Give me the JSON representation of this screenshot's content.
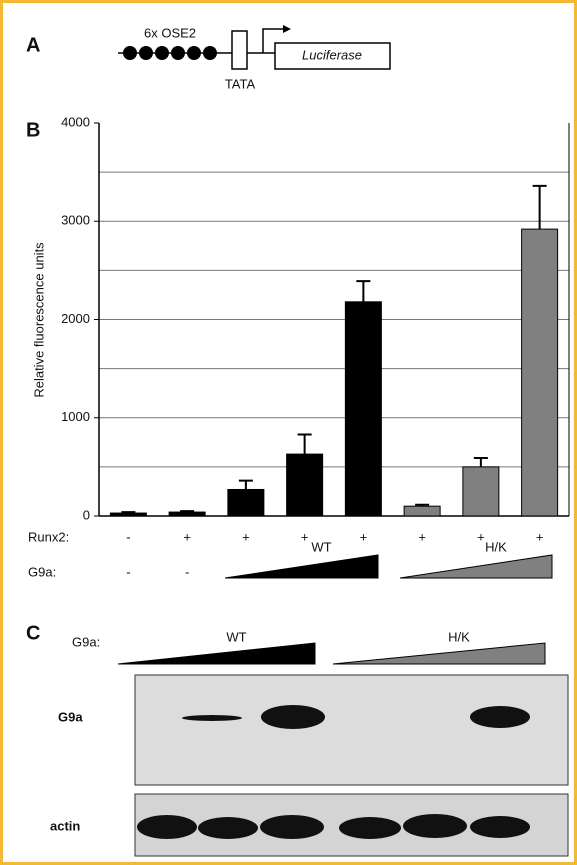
{
  "panel_a": {
    "label": "A",
    "element_label": "6x OSE2",
    "tata_label": "TATA",
    "reporter_label": "Luciferase"
  },
  "chart_data": {
    "type": "bar",
    "panel_label": "B",
    "y_label": "Relative fluorescence units",
    "categories": [
      null,
      null,
      null,
      null,
      null,
      null,
      null,
      null
    ],
    "values": [
      30,
      40,
      270,
      630,
      2180,
      100,
      500,
      2920
    ],
    "errors": [
      10,
      10,
      90,
      200,
      210,
      15,
      90,
      440
    ],
    "colors": [
      "#000000",
      "#000000",
      "#000000",
      "#000000",
      "#000000",
      "#808080",
      "#808080",
      "#808080"
    ],
    "ylim": [
      0,
      4000
    ],
    "yticks": [
      0,
      1000,
      2000,
      3000,
      4000
    ],
    "gridlines": [
      500,
      1000,
      1500,
      2000,
      2500,
      3000,
      3500
    ],
    "runx2_label": "Runx2:",
    "runx2": [
      "-",
      "+",
      "+",
      "+",
      "+",
      "+",
      "+",
      "+"
    ],
    "g9a_label": "G9a:",
    "g9a": [
      "-",
      "-"
    ],
    "wedges": [
      {
        "label": "WT",
        "color": "#000000"
      },
      {
        "label": "H/K",
        "color": "#808080"
      }
    ]
  },
  "panel_c": {
    "label": "C",
    "g9a_label": "G9a:",
    "wedges": [
      {
        "label": "WT",
        "color": "#000000"
      },
      {
        "label": "H/K",
        "color": "#808080"
      }
    ],
    "blot_labels": [
      "G9a",
      "actin"
    ]
  }
}
